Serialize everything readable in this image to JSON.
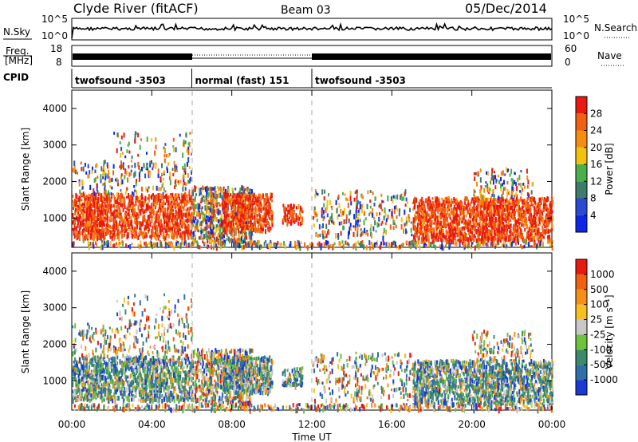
{
  "header": {
    "station": "Clyde River (fitACF)",
    "beam": "Beam 03",
    "date": "05/Dec/2014"
  },
  "summary": {
    "nsky_label": "N.Sky",
    "nsearch_label": "N.Search",
    "freq_label_1": "Freq.",
    "freq_label_2": "[MHz]",
    "nave_label": "Nave",
    "cpid_label": "CPID",
    "left_ticks_top": [
      "10^5",
      "10^0"
    ],
    "right_ticks_top": [
      "10^5",
      "10^0"
    ],
    "left_ticks_freq": [
      "18",
      "8"
    ],
    "right_ticks_nave": [
      "60",
      "0"
    ],
    "cpid_segments": [
      {
        "start_hour": 0,
        "end_hour": 6,
        "label": "twofsound -3503"
      },
      {
        "start_hour": 6,
        "end_hour": 12,
        "label": "normal (fast) 151"
      },
      {
        "start_hour": 12,
        "end_hour": 24,
        "label": "twofsound -3503"
      }
    ]
  },
  "chart_data": [
    {
      "type": "heatmap",
      "name": "power",
      "ylabel": "Slant Range [km]",
      "colorbar_label": "Power [dB]",
      "y_ticks": [
        1000,
        2000,
        3000,
        4000
      ],
      "ylim": [
        200,
        4500
      ],
      "xlim_hours": [
        0,
        24
      ],
      "colorbar_ticks": [
        "4",
        "8",
        "12",
        "16",
        "20",
        "24",
        "28"
      ],
      "colorbar_colors": [
        "#0a28e6",
        "#2a4ad2",
        "#3d7d6a",
        "#4bb04b",
        "#f2c20d",
        "#f78d0c",
        "#f06010",
        "#e81a10"
      ]
    },
    {
      "type": "heatmap",
      "name": "velocity",
      "ylabel": "Slant Range [km]",
      "colorbar_label": "Velocity [m s⁻¹]",
      "y_ticks": [
        1000,
        2000,
        3000,
        4000
      ],
      "ylim": [
        200,
        4500
      ],
      "xlim_hours": [
        0,
        24
      ],
      "colorbar_ticks": [
        "1000",
        "500",
        "100",
        "25",
        "-25",
        "-100",
        "-500",
        "-1000"
      ],
      "colorbar_colors": [
        "#1a3ad6",
        "#2f70a8",
        "#3c8a6a",
        "#6ec23c",
        "#c8c8c8",
        "#f6c020",
        "#f39015",
        "#f06010",
        "#e81a10"
      ]
    }
  ],
  "x_axis": {
    "ticks": [
      "00:00",
      "04:00",
      "08:00",
      "12:00",
      "16:00",
      "20:00",
      "00:00"
    ],
    "label": "Time UT"
  }
}
